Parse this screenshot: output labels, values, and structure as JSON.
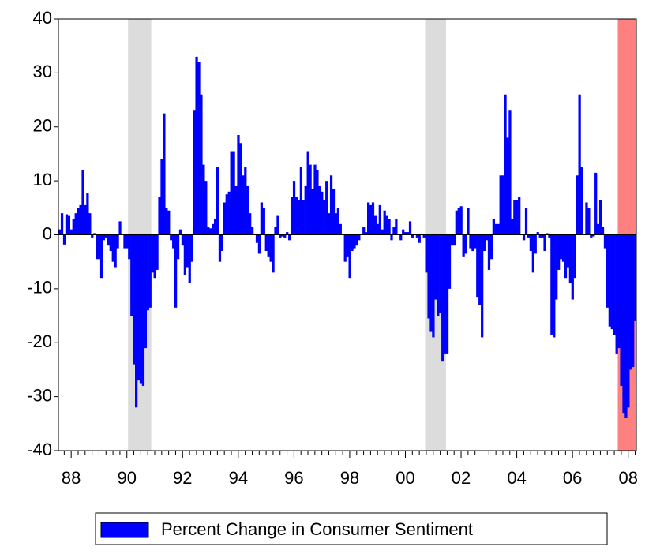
{
  "chart_data": {
    "type": "bar",
    "color": "#0000ff",
    "ylim": [
      -40,
      40
    ],
    "yticks": [
      -40,
      -30,
      -20,
      -10,
      0,
      10,
      20,
      30,
      40
    ],
    "shaded_periods": [
      {
        "start": 30,
        "end": 39,
        "color": "#dcdcdc"
      },
      {
        "start": 158,
        "end": 166,
        "color": "#dcdcdc"
      },
      {
        "start": 241,
        "end": 248,
        "color": "#ff8080"
      }
    ],
    "legend": "bottom",
    "series": [
      {
        "name": "Percent Change in Consumer Sentiment",
        "color": "#0000ff",
        "values": [
          1,
          4,
          -1.8,
          3.8,
          3.5,
          1,
          3,
          4,
          5,
          5.5,
          12,
          5.5,
          7.8,
          4,
          -0.5,
          0.3,
          -4.5,
          -4.5,
          -8,
          -1,
          -0.5,
          -2,
          -3,
          -5,
          -6,
          -2.5,
          2.5,
          0,
          -2.5,
          -2.5,
          -4.5,
          -15,
          -24,
          -32,
          -27,
          -27.5,
          -28,
          -21,
          -14,
          -13.5,
          -7,
          -8,
          -6.5,
          7,
          14,
          22.5,
          5,
          4.5,
          -1,
          -2.5,
          -13.5,
          -4.5,
          1,
          -2,
          -7.5,
          -6,
          -9,
          -5,
          23,
          33,
          32,
          26,
          13,
          10,
          1.5,
          1.2,
          2,
          3,
          12.5,
          -5,
          -3,
          6,
          7.5,
          8,
          15.5,
          15.5,
          9,
          18.5,
          17,
          11,
          12.5,
          9,
          4,
          1.5,
          0,
          -1.5,
          -3.5,
          6,
          5,
          -3,
          -4,
          -5,
          -7,
          1.5,
          3.5,
          -0.5,
          -0.3,
          -0.5,
          0.5,
          -1,
          7,
          10,
          7,
          6.5,
          12.5,
          6.5,
          9,
          15.5,
          13,
          8.5,
          13,
          12,
          9,
          8,
          6.5,
          10,
          4,
          11,
          8.5,
          4,
          5,
          2,
          0,
          -5,
          -4,
          -8,
          -3,
          -2.5,
          -2,
          -1,
          0,
          1.5,
          0.5,
          6,
          5.5,
          6,
          3.5,
          2,
          5.5,
          1,
          4.5,
          3.5,
          3,
          -1,
          1.5,
          3,
          0,
          -1,
          1,
          0.5,
          0.5,
          2.5,
          -0.5,
          0,
          -0.5,
          -1.5,
          0,
          -0.5,
          -7,
          -15.5,
          -18,
          -19,
          -12,
          -15,
          -14.5,
          -23.5,
          -22,
          -22,
          -10,
          -2,
          -2,
          4.5,
          5,
          5.3,
          -4,
          -3.5,
          5,
          -2.5,
          -3,
          -2.5,
          -11.5,
          -13,
          -19,
          -3,
          -1,
          -6.5,
          -4.5,
          3,
          2,
          2,
          11,
          11,
          26,
          18,
          23,
          3,
          6.5,
          6.5,
          7,
          0,
          -1,
          5,
          -0.5,
          -3,
          -7,
          -3.5,
          0.5,
          -0.5,
          -0.5,
          -3,
          0.3,
          -0.5,
          -18.5,
          -19,
          -12,
          -6.5,
          -4.5,
          -5,
          -8,
          -6,
          -9,
          -12,
          -8,
          11,
          26,
          12.5,
          0,
          6,
          5,
          -0.5,
          -0.3,
          11.5,
          2,
          6.5,
          1.5,
          -2.5,
          -13.5,
          -17,
          -17.5,
          -18.5,
          -22,
          -21,
          -28,
          -33,
          -34,
          -32,
          -25,
          -24.5,
          -16
        ]
      }
    ],
    "categories": [
      null,
      null,
      null,
      null,
      null,
      "88",
      null,
      null,
      null,
      null,
      null,
      null,
      null,
      null,
      null,
      null,
      null,
      null,
      null,
      null,
      null,
      null,
      null,
      null,
      null,
      null,
      null,
      null,
      null,
      "90",
      null,
      null,
      null,
      null,
      null,
      null,
      null,
      null,
      null,
      null,
      null,
      null,
      null,
      null,
      null,
      null,
      null,
      null,
      null,
      null,
      null,
      null,
      null,
      "92",
      null,
      null,
      null,
      null,
      null,
      null,
      null,
      null,
      null,
      null,
      null,
      null,
      null,
      null,
      null,
      null,
      null,
      null,
      null,
      null,
      null,
      null,
      null,
      "94",
      null,
      null,
      null,
      null,
      null,
      null,
      null,
      null,
      null,
      null,
      null,
      null,
      null,
      null,
      null,
      null,
      null,
      null,
      null,
      null,
      null,
      null,
      null,
      "96",
      null,
      null,
      null,
      null,
      null,
      null,
      null,
      null,
      null,
      null,
      null,
      null,
      null,
      null,
      null,
      null,
      null,
      null,
      null,
      null,
      null,
      null,
      null,
      "98",
      null,
      null,
      null,
      null,
      null,
      null,
      null,
      null,
      null,
      null,
      null,
      null,
      null,
      null,
      null,
      null,
      null,
      null,
      null,
      null,
      null,
      null,
      null,
      "00",
      null,
      null,
      null,
      null,
      null,
      null,
      null,
      null,
      null,
      null,
      null,
      null,
      null,
      null,
      null,
      null,
      null,
      null,
      null,
      null,
      null,
      null,
      null,
      "02",
      null,
      null,
      null,
      null,
      null,
      null,
      null,
      null,
      null,
      null,
      null,
      null,
      null,
      null,
      null,
      null,
      null,
      null,
      null,
      null,
      null,
      null,
      null,
      "04",
      null,
      null,
      null,
      null,
      null,
      null,
      null,
      null,
      null,
      null,
      null,
      null,
      null,
      null,
      null,
      null,
      null,
      null,
      null,
      null,
      null,
      null,
      null,
      "06",
      null,
      null,
      null,
      null,
      null,
      null,
      null,
      null,
      null,
      null,
      null,
      null,
      null,
      null,
      null,
      null,
      null,
      null,
      null,
      null,
      null,
      null,
      null,
      "08",
      null,
      null,
      null
    ]
  }
}
